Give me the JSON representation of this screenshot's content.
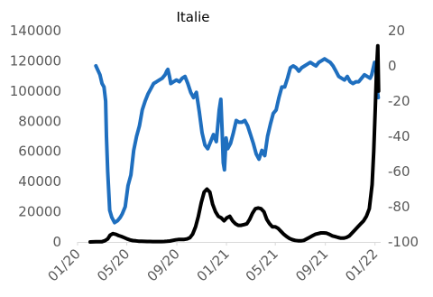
{
  "chart_data": {
    "type": "line",
    "title": "Italie",
    "xlabel": "",
    "ylabel": "",
    "y2label": "",
    "grid": false,
    "legend": "none",
    "x_tick_labels": [
      "01/20",
      "05/20",
      "09/20",
      "01/21",
      "05/21",
      "09/21",
      "01/22"
    ],
    "xlim": [
      "2020-01-01",
      "2022-01-15"
    ],
    "ylim": [
      0,
      140000
    ],
    "y_ticks": [
      0,
      20000,
      40000,
      60000,
      80000,
      100000,
      120000,
      140000
    ],
    "y2lim": [
      -100,
      20
    ],
    "y2_ticks": [
      -100,
      -80,
      -60,
      -40,
      -20,
      0,
      20
    ],
    "series": [
      {
        "axis": "right",
        "color": "#1f6fbf",
        "x": [
          "2020-02-15",
          "2020-02-25",
          "2020-03-01",
          "2020-03-06",
          "2020-03-10",
          "2020-03-12",
          "2020-03-15",
          "2020-03-20",
          "2020-03-25",
          "2020-04-01",
          "2020-04-08",
          "2020-04-15",
          "2020-04-20",
          "2020-04-27",
          "2020-05-04",
          "2020-05-11",
          "2020-05-18",
          "2020-05-25",
          "2020-06-01",
          "2020-06-08",
          "2020-06-15",
          "2020-06-22",
          "2020-06-29",
          "2020-07-06",
          "2020-07-13",
          "2020-07-20",
          "2020-07-27",
          "2020-08-03",
          "2020-08-07",
          "2020-08-10",
          "2020-08-14",
          "2020-08-17",
          "2020-08-24",
          "2020-08-31",
          "2020-09-07",
          "2020-09-14",
          "2020-09-21",
          "2020-09-28",
          "2020-10-05",
          "2020-10-12",
          "2020-10-19",
          "2020-10-26",
          "2020-11-02",
          "2020-11-09",
          "2020-11-16",
          "2020-11-23",
          "2020-11-30",
          "2020-12-07",
          "2020-12-14",
          "2020-12-18",
          "2020-12-21",
          "2020-12-24",
          "2020-12-27",
          "2020-12-31",
          "2021-01-04",
          "2021-01-11",
          "2021-01-18",
          "2021-01-25",
          "2021-02-01",
          "2021-02-08",
          "2021-02-15",
          "2021-02-22",
          "2021-03-01",
          "2021-03-08",
          "2021-03-15",
          "2021-03-22",
          "2021-03-29",
          "2021-04-05",
          "2021-04-12",
          "2021-04-19",
          "2021-04-26",
          "2021-05-03",
          "2021-05-10",
          "2021-05-17",
          "2021-05-24",
          "2021-05-31",
          "2021-06-07",
          "2021-06-14",
          "2021-06-21",
          "2021-06-28",
          "2021-07-05",
          "2021-07-12",
          "2021-07-19",
          "2021-07-26",
          "2021-08-02",
          "2021-08-09",
          "2021-08-16",
          "2021-08-23",
          "2021-08-30",
          "2021-09-06",
          "2021-09-13",
          "2021-09-20",
          "2021-09-27",
          "2021-10-04",
          "2021-10-11",
          "2021-10-18",
          "2021-10-25",
          "2021-11-01",
          "2021-11-08",
          "2021-11-15",
          "2021-11-22",
          "2021-11-29",
          "2021-12-06",
          "2021-12-13",
          "2021-12-20",
          "2021-12-24",
          "2021-12-27",
          "2021-12-31",
          "2022-01-03",
          "2022-01-06",
          "2022-01-09"
        ],
        "values": [
          0,
          -5,
          -10,
          -12,
          -20,
          -40,
          -60,
          -82,
          -86,
          -89,
          -88,
          -86,
          -84,
          -80,
          -68,
          -62,
          -48,
          -40,
          -34,
          -25,
          -20,
          -16,
          -13,
          -10,
          -9,
          -8,
          -7,
          -5,
          -3,
          -2,
          -6,
          -10,
          -9,
          -8,
          -9,
          -7,
          -6,
          -10,
          -15,
          -18,
          -15,
          -26,
          -38,
          -45,
          -47,
          -43,
          -39,
          -43,
          -25,
          -19,
          -35,
          -55,
          -59,
          -41,
          -47,
          -44,
          -38,
          -31,
          -32,
          -32,
          -31,
          -34,
          -39,
          -44,
          -50,
          -53,
          -48,
          -51,
          -40,
          -33,
          -27,
          -25,
          -18,
          -12,
          -12,
          -7,
          -1,
          0,
          -1,
          -3,
          -1,
          0,
          1,
          2,
          1,
          0,
          2,
          3,
          4,
          3,
          2,
          0,
          -3,
          -6,
          -7,
          -8,
          -6,
          -9,
          -10,
          -9,
          -9,
          -7,
          -5,
          -6,
          -7,
          -5,
          -2,
          2,
          0,
          -13,
          -18
        ]
      },
      {
        "axis": "left",
        "color": "#000000",
        "x": [
          "2020-02-01",
          "2020-02-15",
          "2020-03-01",
          "2020-03-08",
          "2020-03-15",
          "2020-03-21",
          "2020-03-28",
          "2020-04-04",
          "2020-04-11",
          "2020-04-18",
          "2020-04-25",
          "2020-05-02",
          "2020-05-09",
          "2020-05-16",
          "2020-05-23",
          "2020-05-30",
          "2020-06-06",
          "2020-06-13",
          "2020-06-20",
          "2020-06-27",
          "2020-07-04",
          "2020-07-11",
          "2020-07-18",
          "2020-07-25",
          "2020-08-01",
          "2020-08-08",
          "2020-08-15",
          "2020-08-22",
          "2020-08-29",
          "2020-09-05",
          "2020-09-12",
          "2020-09-19",
          "2020-09-26",
          "2020-10-03",
          "2020-10-10",
          "2020-10-17",
          "2020-10-24",
          "2020-10-31",
          "2020-11-07",
          "2020-11-14",
          "2020-11-21",
          "2020-11-28",
          "2020-12-05",
          "2020-12-12",
          "2020-12-19",
          "2020-12-26",
          "2021-01-02",
          "2021-01-09",
          "2021-01-16",
          "2021-01-23",
          "2021-01-30",
          "2021-02-06",
          "2021-02-13",
          "2021-02-20",
          "2021-02-27",
          "2021-03-06",
          "2021-03-13",
          "2021-03-20",
          "2021-03-27",
          "2021-04-03",
          "2021-04-10",
          "2021-04-17",
          "2021-04-24",
          "2021-05-01",
          "2021-05-08",
          "2021-05-15",
          "2021-05-22",
          "2021-05-29",
          "2021-06-05",
          "2021-06-12",
          "2021-06-19",
          "2021-06-26",
          "2021-07-03",
          "2021-07-10",
          "2021-07-17",
          "2021-07-24",
          "2021-07-31",
          "2021-08-07",
          "2021-08-14",
          "2021-08-21",
          "2021-08-28",
          "2021-09-04",
          "2021-09-11",
          "2021-09-18",
          "2021-09-25",
          "2021-10-02",
          "2021-10-09",
          "2021-10-16",
          "2021-10-23",
          "2021-10-30",
          "2021-11-06",
          "2021-11-13",
          "2021-11-20",
          "2021-11-27",
          "2021-12-04",
          "2021-12-11",
          "2021-12-18",
          "2021-12-25",
          "2021-12-29",
          "2022-01-02",
          "2022-01-05",
          "2022-01-08",
          "2022-01-10"
        ],
        "values": [
          0,
          100,
          200,
          800,
          2000,
          4500,
          5500,
          5000,
          4200,
          3600,
          2800,
          2000,
          1300,
          900,
          700,
          500,
          400,
          350,
          300,
          280,
          250,
          230,
          220,
          250,
          300,
          400,
          600,
          1000,
          1400,
          1600,
          1700,
          1700,
          2000,
          2800,
          5200,
          10000,
          17000,
          26000,
          33000,
          35000,
          33000,
          25000,
          20000,
          17000,
          16000,
          14000,
          16000,
          17000,
          14000,
          12000,
          11000,
          11000,
          11500,
          12000,
          15000,
          19000,
          22000,
          22500,
          22000,
          20000,
          15000,
          12000,
          10000,
          10000,
          9000,
          7000,
          5000,
          3500,
          2300,
          1500,
          1000,
          800,
          700,
          1000,
          2000,
          3000,
          4000,
          5000,
          5500,
          6000,
          6000,
          5800,
          5000,
          4000,
          3500,
          3000,
          2500,
          2500,
          3000,
          4000,
          6000,
          8000,
          10000,
          12000,
          14000,
          17000,
          22000,
          38000,
          60000,
          90000,
          115000,
          130000,
          100000
        ]
      }
    ]
  }
}
